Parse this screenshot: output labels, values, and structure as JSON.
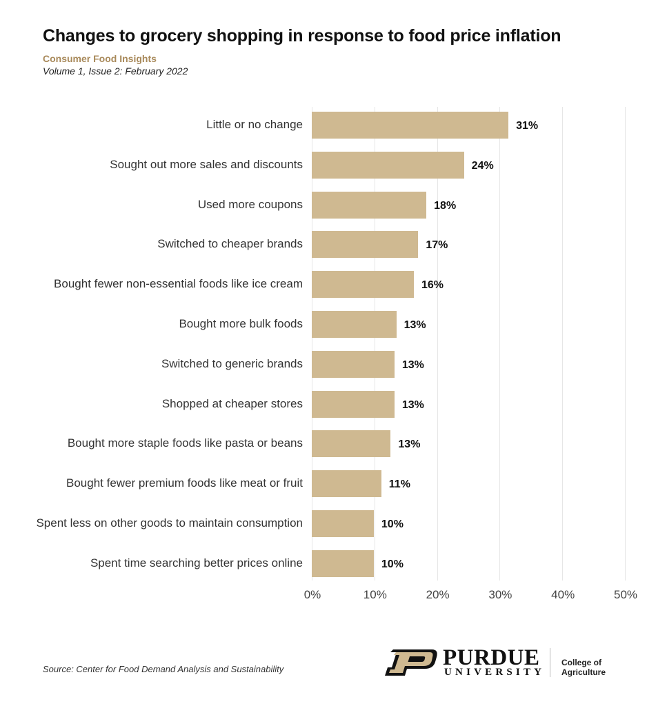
{
  "header": {
    "title": "Changes to grocery shopping in response to food price inflation",
    "subtitle": "Consumer Food Insights",
    "issue": "Volume 1, Issue 2: February 2022"
  },
  "footer": {
    "source": "Source:  Center for Food Demand Analysis and Sustainability",
    "logo_name": "PURDUE",
    "logo_sub": "UNIVERSITY",
    "college": "College of Agriculture"
  },
  "colors": {
    "bar": "#cfb991",
    "subtitle": "#a8895a"
  },
  "chart_data": {
    "type": "bar",
    "orientation": "horizontal",
    "title": "Changes to grocery shopping in response to food price inflation",
    "subtitle": "Consumer Food Insights",
    "xlabel": "",
    "ylabel": "",
    "xlim": [
      0,
      50
    ],
    "grid": true,
    "categories": [
      "Little or no change",
      "Sought out more sales and discounts",
      "Used more coupons",
      "Switched to cheaper brands",
      "Bought fewer non-essential foods like ice cream",
      "Bought more bulk foods",
      "Switched to generic brands",
      "Shopped at cheaper stores",
      "Bought more staple foods like pasta or beans",
      "Bought fewer premium foods like meat or fruit",
      "Spent less on other goods to maintain consumption",
      "Spent time searching better prices online"
    ],
    "values": [
      31,
      24,
      18,
      17,
      16,
      13,
      13,
      13,
      13,
      11,
      10,
      10
    ],
    "bar_values_exact": [
      31.4,
      24.3,
      18.3,
      17.0,
      16.3,
      13.5,
      13.2,
      13.2,
      12.6,
      11.1,
      9.9,
      9.9
    ],
    "labels": [
      "31%",
      "24%",
      "18%",
      "17%",
      "16%",
      "13%",
      "13%",
      "13%",
      "13%",
      "11%",
      "10%",
      "10%"
    ],
    "x_ticks": [
      "0%",
      "10%",
      "20%",
      "30%",
      "40%",
      "50%"
    ]
  }
}
